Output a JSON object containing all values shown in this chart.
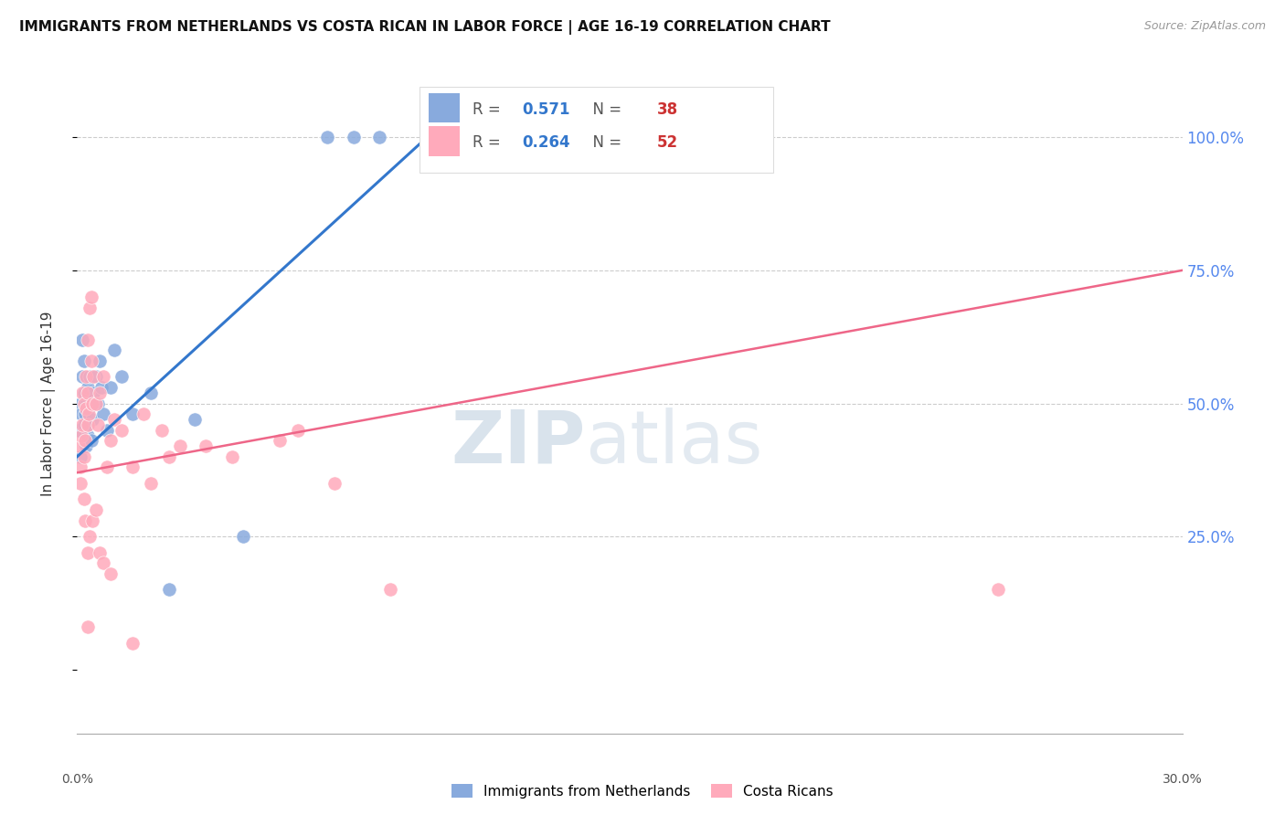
{
  "title": "IMMIGRANTS FROM NETHERLANDS VS COSTA RICAN IN LABOR FORCE | AGE 16-19 CORRELATION CHART",
  "source": "Source: ZipAtlas.com",
  "ylabel": "In Labor Force | Age 16-19",
  "xlim": [
    0.0,
    30.0
  ],
  "ylim": [
    -12.0,
    112.0
  ],
  "yticks": [
    0,
    25,
    50,
    75,
    100
  ],
  "ytick_labels": [
    "",
    "25.0%",
    "50.0%",
    "75.0%",
    "100.0%"
  ],
  "legend1_r": "0.571",
  "legend1_n": "38",
  "legend2_r": "0.264",
  "legend2_n": "52",
  "color_blue": "#88AADD",
  "color_pink": "#FFAABB",
  "color_blue_line": "#3377CC",
  "color_pink_line": "#EE6688",
  "color_axis_blue": "#5588EE",
  "watermark_zip": "ZIP",
  "watermark_atlas": "atlas",
  "blue_scatter_x": [
    0.05,
    0.08,
    0.1,
    0.12,
    0.15,
    0.15,
    0.18,
    0.2,
    0.2,
    0.22,
    0.25,
    0.25,
    0.28,
    0.3,
    0.3,
    0.32,
    0.35,
    0.38,
    0.4,
    0.42,
    0.45,
    0.5,
    0.55,
    0.6,
    0.65,
    0.7,
    0.8,
    0.9,
    1.0,
    1.2,
    1.5,
    2.0,
    2.5,
    3.2,
    4.5,
    6.8,
    7.5,
    8.2
  ],
  "blue_scatter_y": [
    45,
    50,
    40,
    48,
    55,
    62,
    58,
    46,
    52,
    48,
    42,
    50,
    44,
    46,
    53,
    49,
    55,
    43,
    50,
    47,
    52,
    55,
    50,
    58,
    53,
    48,
    45,
    53,
    60,
    55,
    48,
    52,
    15,
    47,
    25,
    100,
    100,
    100
  ],
  "pink_scatter_x": [
    0.05,
    0.08,
    0.1,
    0.12,
    0.15,
    0.15,
    0.18,
    0.2,
    0.22,
    0.25,
    0.25,
    0.28,
    0.3,
    0.3,
    0.32,
    0.35,
    0.38,
    0.4,
    0.42,
    0.45,
    0.5,
    0.55,
    0.6,
    0.7,
    0.8,
    0.9,
    1.0,
    1.2,
    1.5,
    1.8,
    2.0,
    2.3,
    2.5,
    2.8,
    3.5,
    4.2,
    5.5,
    6.0,
    7.0,
    8.5,
    0.18,
    0.22,
    0.28,
    0.35,
    0.42,
    0.5,
    0.6,
    0.7,
    0.9,
    25.0,
    1.5,
    0.3
  ],
  "pink_scatter_y": [
    42,
    38,
    35,
    44,
    52,
    46,
    50,
    40,
    43,
    55,
    49,
    62,
    52,
    46,
    48,
    68,
    70,
    58,
    50,
    55,
    50,
    46,
    52,
    55,
    38,
    43,
    47,
    45,
    38,
    48,
    35,
    45,
    40,
    42,
    42,
    40,
    43,
    45,
    35,
    15,
    32,
    28,
    22,
    25,
    28,
    30,
    22,
    20,
    18,
    15,
    5,
    8
  ],
  "blue_trend_x": [
    0.0,
    9.5
  ],
  "blue_trend_y": [
    40.0,
    100.0
  ],
  "pink_trend_x": [
    0.0,
    30.0
  ],
  "pink_trend_y": [
    37.0,
    75.0
  ]
}
